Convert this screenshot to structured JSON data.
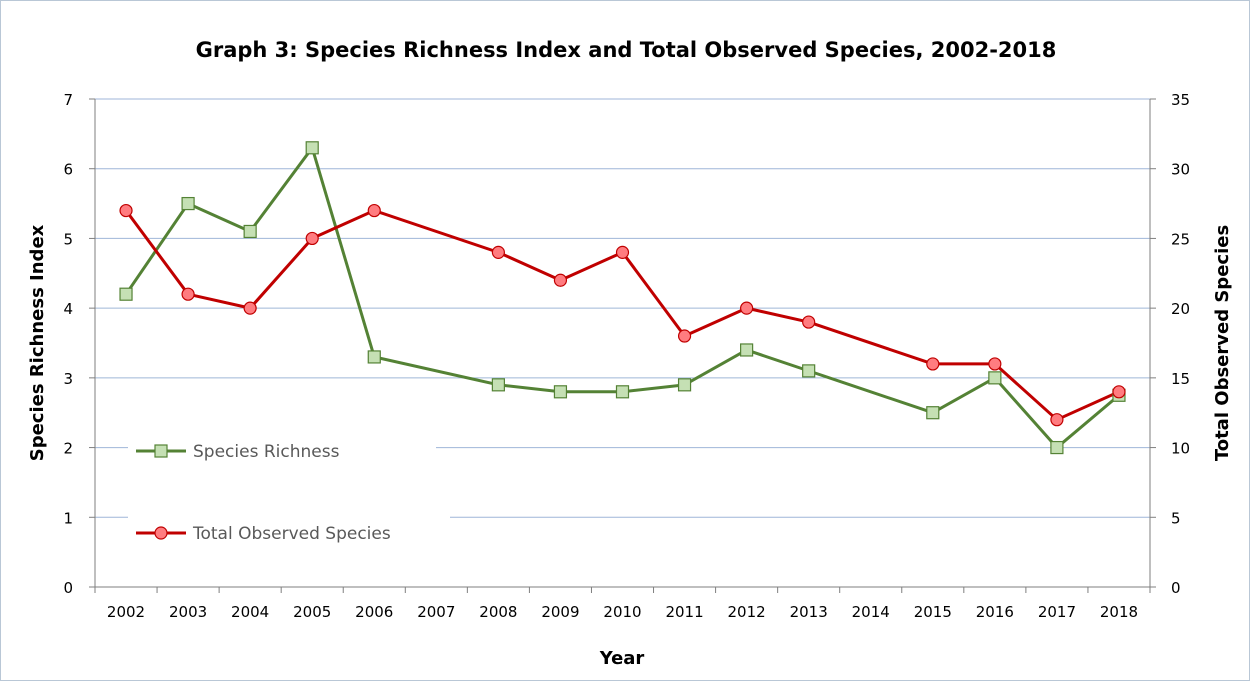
{
  "chart_data": {
    "type": "line",
    "title": "Graph 3: Species Richness Index and Total Observed Species, 2002-2018",
    "xlabel": "Year",
    "ylabel_left": "Species Richness Index",
    "ylabel_right": "Total Observed Species",
    "categories": [
      "2002",
      "2003",
      "2004",
      "2005",
      "2006",
      "2007",
      "2008",
      "2009",
      "2010",
      "2011",
      "2012",
      "2013",
      "2014",
      "2015",
      "2016",
      "2017",
      "2018"
    ],
    "ylim_left": [
      0,
      7
    ],
    "yticks_left": [
      0,
      1,
      2,
      3,
      4,
      5,
      6,
      7
    ],
    "ylim_right": [
      0,
      35
    ],
    "yticks_right": [
      0,
      5,
      10,
      15,
      20,
      25,
      30,
      35
    ],
    "grid": true,
    "legend_position": "left",
    "series": [
      {
        "name": "Species Richness",
        "axis": "left",
        "color": "#548235",
        "marker": "square",
        "marker_fill": "#c5e0b4",
        "values": [
          4.2,
          5.5,
          5.1,
          6.3,
          3.3,
          null,
          2.9,
          2.8,
          2.8,
          2.9,
          3.4,
          3.1,
          null,
          2.5,
          3.0,
          2.0,
          2.75
        ]
      },
      {
        "name": "Total Observed Species",
        "axis": "right",
        "color": "#c00000",
        "marker": "circle",
        "marker_fill": "#ff7c80",
        "values": [
          27,
          21,
          20,
          25,
          27,
          null,
          24,
          22,
          24,
          18,
          20,
          19,
          null,
          16,
          16,
          12,
          14
        ]
      }
    ]
  }
}
